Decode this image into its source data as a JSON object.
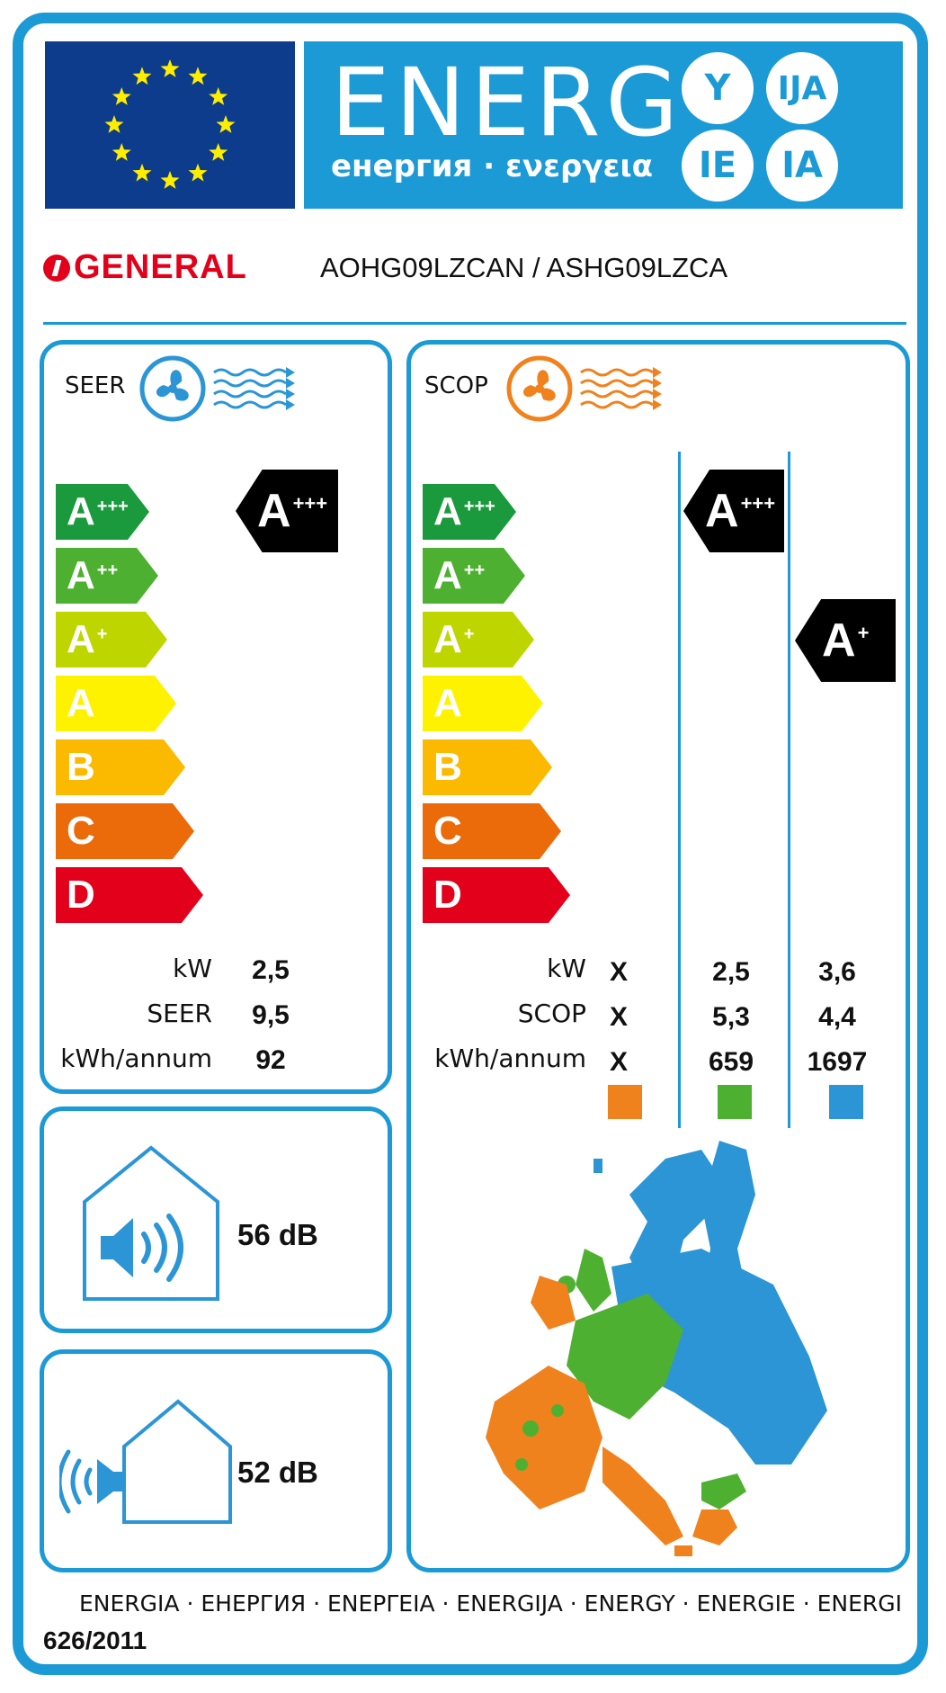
{
  "header": {
    "energ_word": "ENERG",
    "energ_subtitle": "енергия · ενεργεια",
    "bubbles": [
      "Y",
      "IJA",
      "IE",
      "IA"
    ]
  },
  "brand": {
    "name": "GENERAL",
    "model": "AOHG09LZCAN / ASHG09LZCA"
  },
  "seer": {
    "title": "SEER",
    "classes": [
      {
        "letter": "A",
        "plus": "+++",
        "color": "#1a9a3c"
      },
      {
        "letter": "A",
        "plus": "++",
        "color": "#4db031"
      },
      {
        "letter": "A",
        "plus": "+",
        "color": "#bfd500"
      },
      {
        "letter": "A",
        "plus": "",
        "color": "#fff200"
      },
      {
        "letter": "B",
        "plus": "",
        "color": "#fbba00"
      },
      {
        "letter": "C",
        "plus": "",
        "color": "#eb6a0a"
      },
      {
        "letter": "D",
        "plus": "",
        "color": "#e2001a"
      }
    ],
    "rating": {
      "letter": "A",
      "plus": "+++"
    },
    "rows": [
      {
        "label": "kW",
        "value": "2,5"
      },
      {
        "label": "SEER",
        "value": "9,5"
      },
      {
        "label": "kWh/annum",
        "value": "92"
      }
    ]
  },
  "scop": {
    "title": "SCOP",
    "classes": [
      {
        "letter": "A",
        "plus": "+++",
        "color": "#1a9a3c"
      },
      {
        "letter": "A",
        "plus": "++",
        "color": "#4db031"
      },
      {
        "letter": "A",
        "plus": "+",
        "color": "#bfd500"
      },
      {
        "letter": "A",
        "plus": "",
        "color": "#fff200"
      },
      {
        "letter": "B",
        "plus": "",
        "color": "#fbba00"
      },
      {
        "letter": "C",
        "plus": "",
        "color": "#eb6a0a"
      },
      {
        "letter": "D",
        "plus": "",
        "color": "#e2001a"
      }
    ],
    "rating_average": {
      "letter": "A",
      "plus": "+++"
    },
    "rating_colder": {
      "letter": "A",
      "plus": "+"
    },
    "row_labels": [
      "kW",
      "SCOP",
      "kWh/annum"
    ],
    "warmer": [
      "X",
      "X",
      "X"
    ],
    "average": [
      "2,5",
      "5,3",
      "659"
    ],
    "colder": [
      "3,6",
      "4,4",
      "1697"
    ],
    "zone_colors": {
      "warmer": "#f0821e",
      "average": "#4db031",
      "colder": "#2b95d6"
    }
  },
  "noise": {
    "indoor": "56 dB",
    "outdoor": "52 dB"
  },
  "footer": {
    "languages": "ENERGIA · ЕНЕРГИЯ · ΕΝΕΡΓΕΙΑ · ENERGIJA · ENERGY · ENERGIE · ENERGI",
    "regulation": "626/2011"
  },
  "colors": {
    "accent": "#1c9ad6",
    "eu_blue": "#0d3c8c",
    "eu_star": "#ffed00",
    "brand_red": "#e2001a"
  }
}
